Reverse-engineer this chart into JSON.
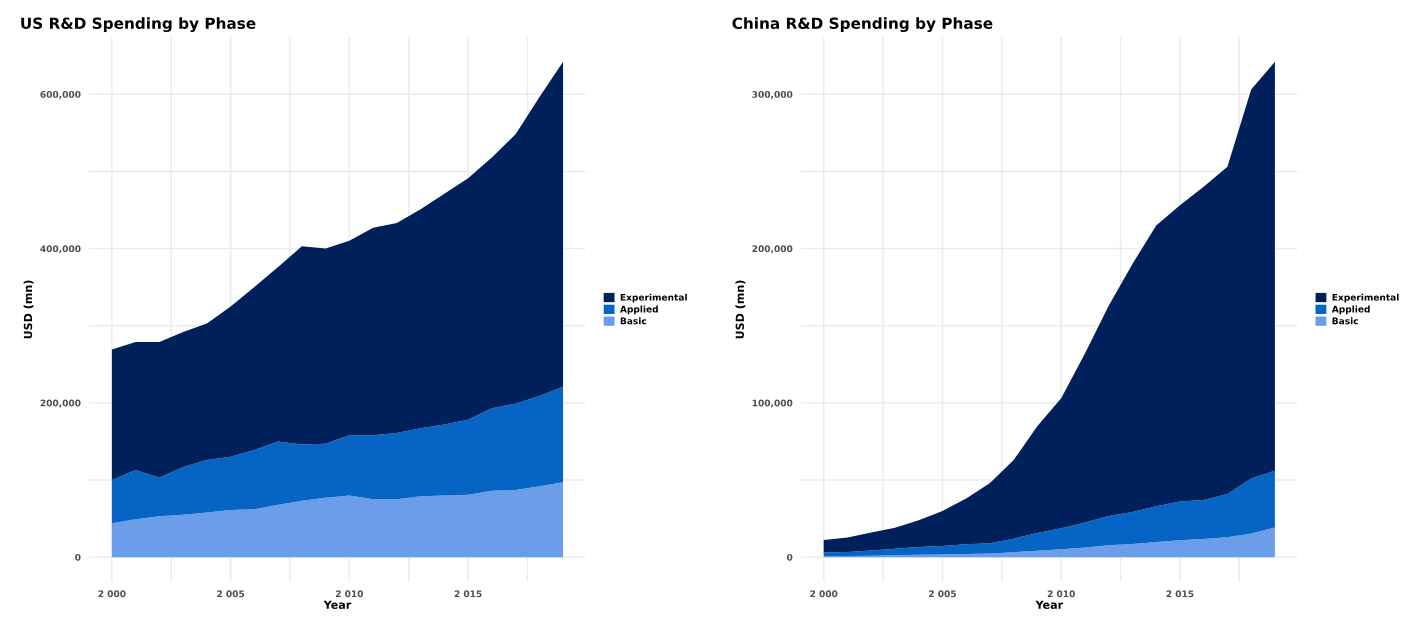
{
  "chart_data": [
    {
      "type": "area",
      "title": "US R&D Spending by Phase",
      "xlabel": "Year",
      "ylabel": "USD (mn)",
      "stacked": true,
      "legend": "right",
      "grid": true,
      "x": [
        2000,
        2001,
        2002,
        2003,
        2004,
        2005,
        2006,
        2007,
        2008,
        2009,
        2010,
        2011,
        2012,
        2013,
        2014,
        2015,
        2016,
        2017,
        2018,
        2019
      ],
      "xlim": [
        1999.05,
        2019.95
      ],
      "xticks": [
        {
          "value": 2000,
          "label": "2 000"
        },
        {
          "value": 2002.5,
          "label": null
        },
        {
          "value": 2005,
          "label": "2 005"
        },
        {
          "value": 2007.5,
          "label": null
        },
        {
          "value": 2010,
          "label": "2 010"
        },
        {
          "value": 2012.5,
          "label": null
        },
        {
          "value": 2015,
          "label": "2 015"
        },
        {
          "value": 2017.5,
          "label": null
        }
      ],
      "ylim": [
        -32000,
        674000
      ],
      "yticks": [
        0,
        {
          "value": 100000,
          "label": null
        },
        {
          "value": 200000,
          "label": "200,000"
        },
        {
          "value": 300000,
          "label": null
        },
        {
          "value": 400000,
          "label": "400,000"
        },
        {
          "value": 500000,
          "label": null
        },
        {
          "value": 600000,
          "label": "600,000"
        }
      ],
      "series": [
        {
          "name": "Basic",
          "color": "#6c9de8",
          "values": [
            44000,
            49000,
            53000,
            55000,
            58000,
            61000,
            62000,
            68000,
            73000,
            77000,
            80000,
            75000,
            75000,
            79000,
            80000,
            81000,
            86000,
            87000,
            92000,
            97000
          ]
        },
        {
          "name": "Applied",
          "color": "#0564c4",
          "values": [
            56000,
            64000,
            50000,
            62000,
            68000,
            69000,
            77000,
            82000,
            73000,
            70000,
            78000,
            83000,
            86000,
            88000,
            92000,
            97000,
            107000,
            112000,
            117000,
            124000
          ]
        },
        {
          "name": "Experimental",
          "color": "#00205b",
          "values": [
            169000,
            166000,
            176000,
            175000,
            177000,
            195000,
            211000,
            226000,
            257000,
            253000,
            252000,
            269000,
            272000,
            284000,
            299000,
            313000,
            325000,
            349000,
            387000,
            421000
          ]
        }
      ]
    },
    {
      "type": "area",
      "title": "China R&D Spending by Phase",
      "xlabel": "Year",
      "ylabel": "USD (mn)",
      "stacked": true,
      "legend": "right",
      "grid": true,
      "x": [
        2000,
        2001,
        2002,
        2003,
        2004,
        2005,
        2006,
        2007,
        2008,
        2009,
        2010,
        2011,
        2012,
        2013,
        2014,
        2015,
        2016,
        2017,
        2018,
        2019
      ],
      "xlim": [
        1999.05,
        2019.95
      ],
      "xticks": [
        {
          "value": 2000,
          "label": "2 000"
        },
        {
          "value": 2002.5,
          "label": null
        },
        {
          "value": 2005,
          "label": "2 005"
        },
        {
          "value": 2007.5,
          "label": null
        },
        {
          "value": 2010,
          "label": "2 010"
        },
        {
          "value": 2012.5,
          "label": null
        },
        {
          "value": 2015,
          "label": "2 015"
        },
        {
          "value": 2017.5,
          "label": null
        }
      ],
      "ylim": [
        -16000,
        337000
      ],
      "yticks": [
        0,
        {
          "value": 50000,
          "label": null
        },
        {
          "value": 100000,
          "label": "100,000"
        },
        {
          "value": 150000,
          "label": null
        },
        {
          "value": 200000,
          "label": "200,000"
        },
        {
          "value": 250000,
          "label": null
        },
        {
          "value": 300000,
          "label": "300,000"
        }
      ],
      "series": [
        {
          "name": "Basic",
          "color": "#6c9de8",
          "values": [
            700,
            700,
            1000,
            1200,
            1500,
            1700,
            2000,
            2400,
            3200,
            4100,
            5100,
            6300,
            7800,
            8500,
            9800,
            11000,
            11700,
            12900,
            15400,
            19300
          ]
        },
        {
          "name": "Applied",
          "color": "#0564c4",
          "values": [
            2300,
            2700,
            3400,
            4200,
            5100,
            5600,
            6300,
            6600,
            8800,
            11500,
            13700,
            16100,
            18800,
            20800,
            23200,
            25000,
            25300,
            28100,
            35600,
            36700
          ]
        },
        {
          "name": "Experimental",
          "color": "#00205b",
          "values": [
            8200,
            9300,
            11600,
            13600,
            17400,
            22700,
            29700,
            39000,
            51000,
            69400,
            84200,
            109600,
            136400,
            160700,
            182000,
            192000,
            203000,
            212000,
            252000,
            265000
          ]
        }
      ]
    }
  ]
}
